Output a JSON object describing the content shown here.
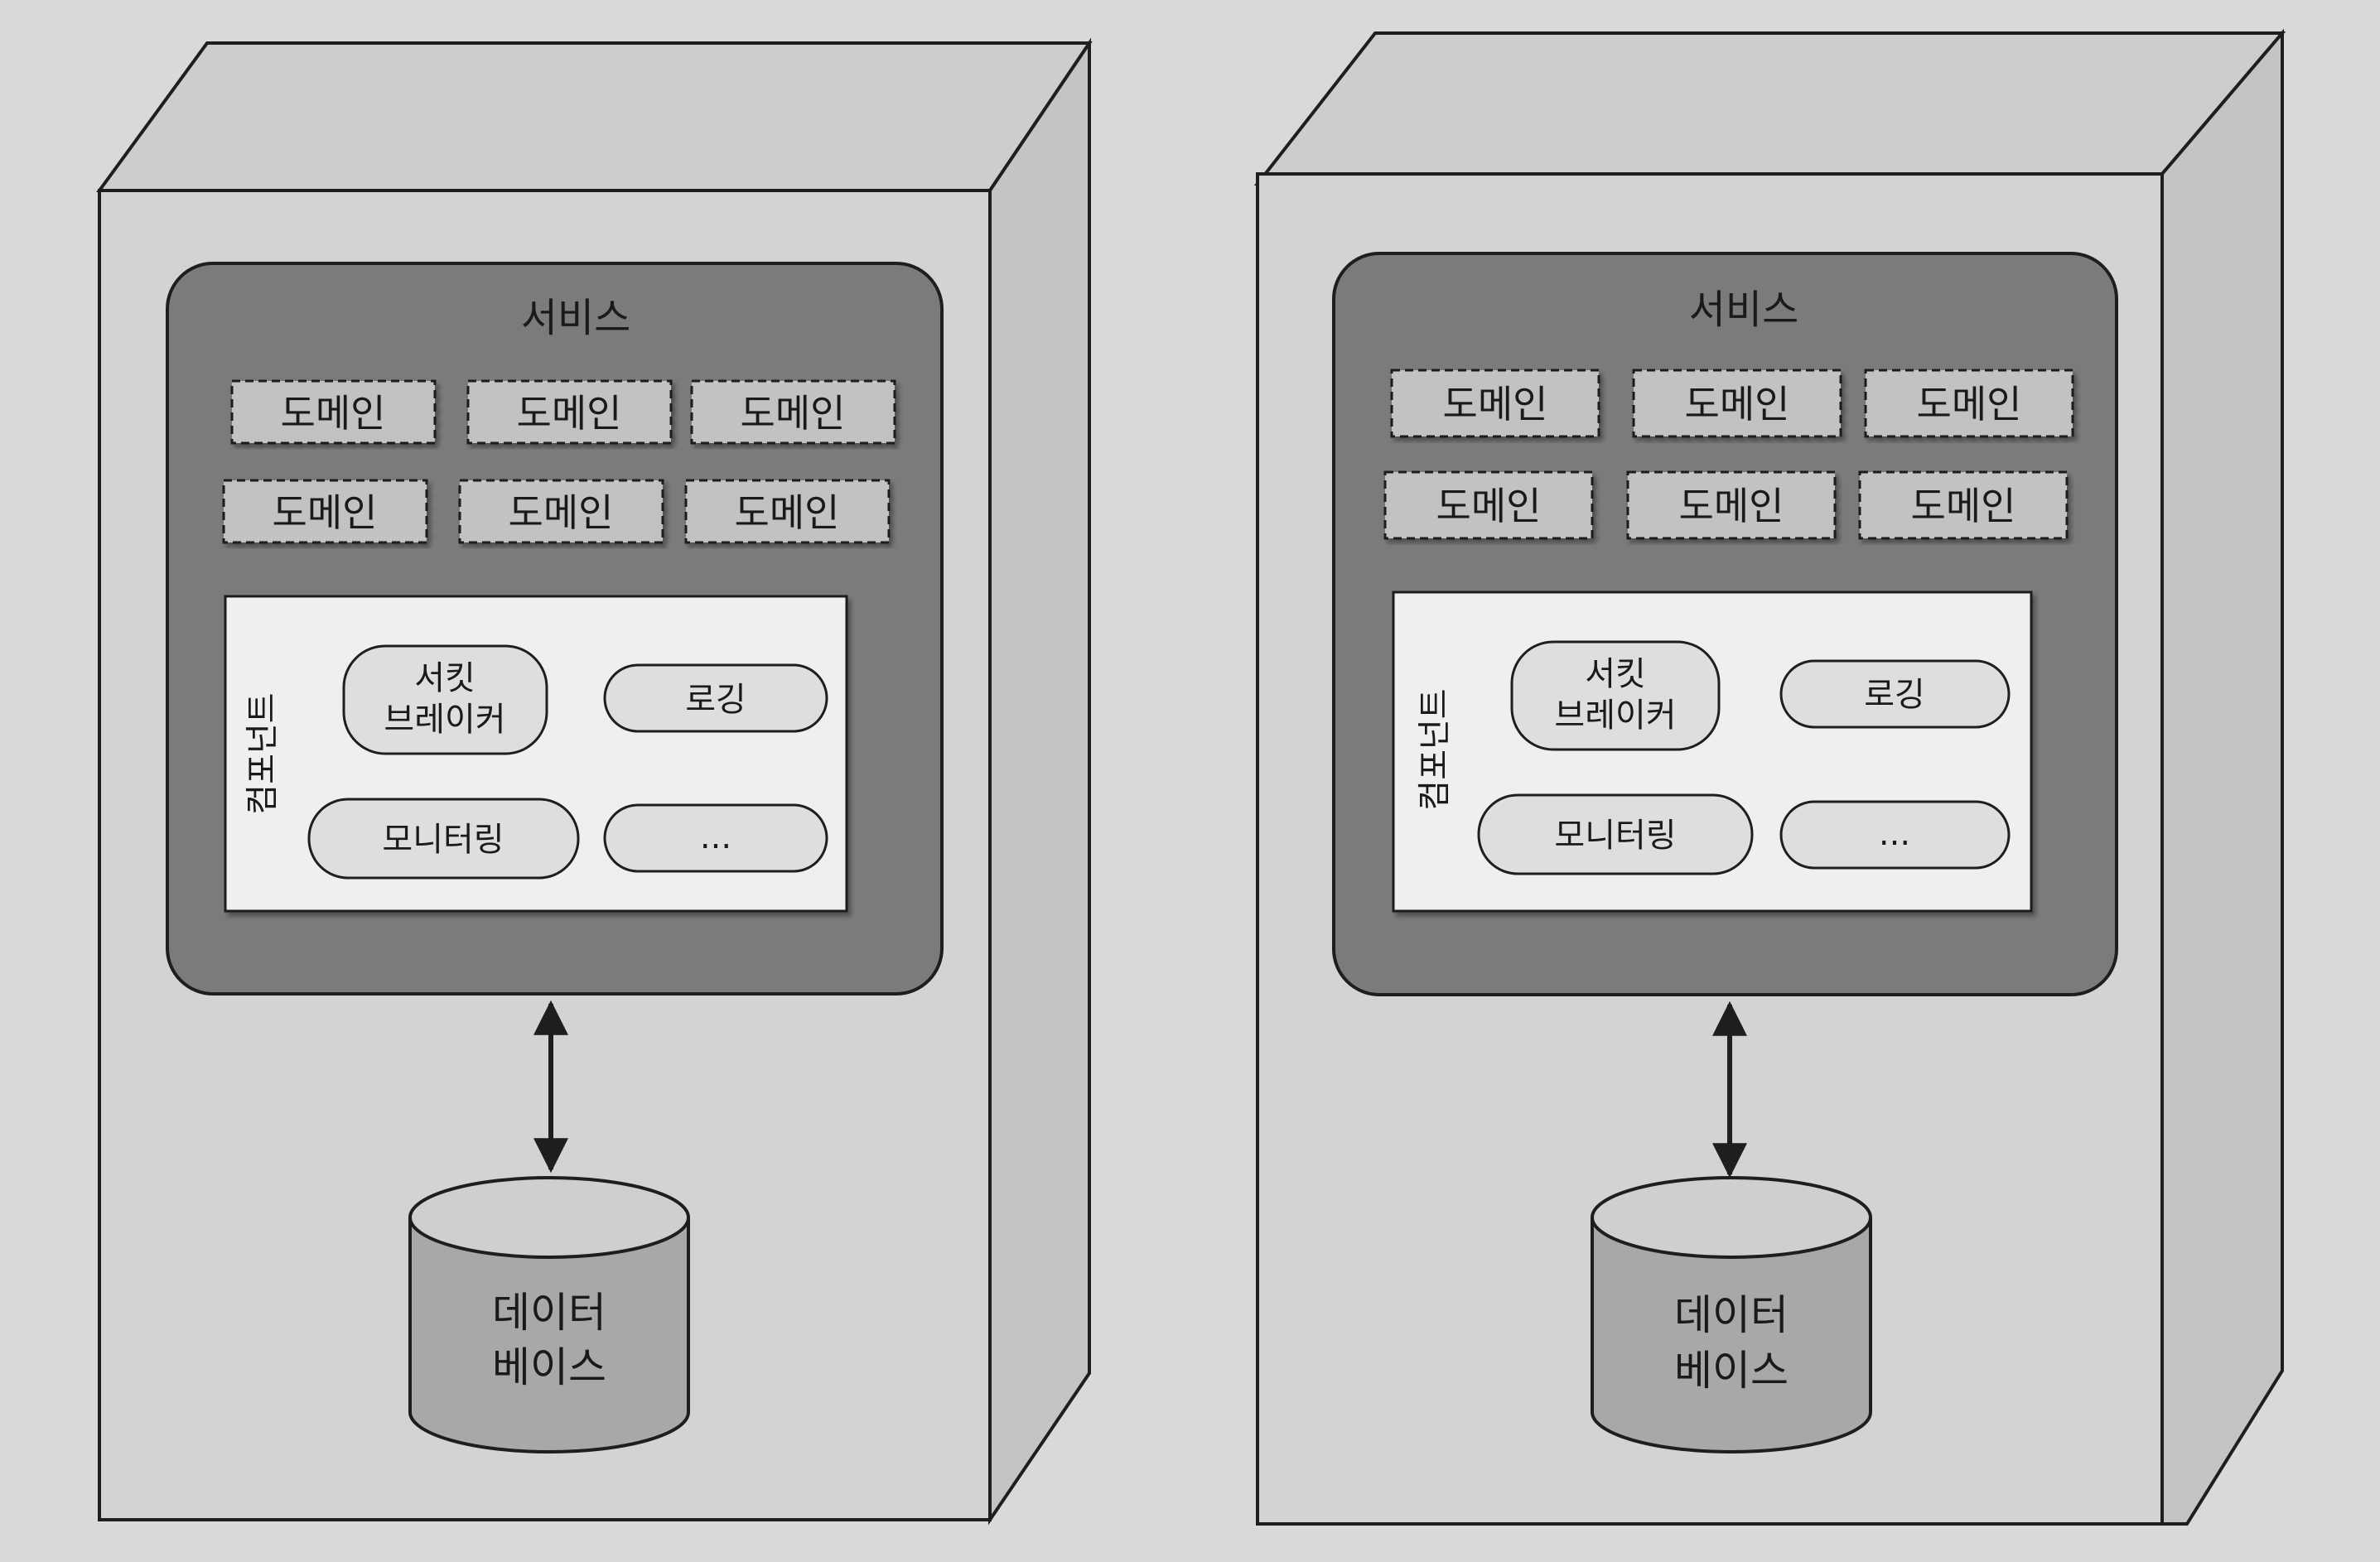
{
  "diagrams": [
    {
      "service_label": "서비스",
      "domains": [
        "도메인",
        "도메인",
        "도메인",
        "도메인",
        "도메인",
        "도메인"
      ],
      "component_label": "컴포넌트",
      "components": [
        {
          "line1": "서킷",
          "line2": "브레이커"
        },
        {
          "line1": "로깅",
          "line2": ""
        },
        {
          "line1": "모니터링",
          "line2": ""
        },
        {
          "line1": "...",
          "line2": ""
        }
      ],
      "database": {
        "line1": "데이터",
        "line2": "베이스"
      }
    },
    {
      "service_label": "서비스",
      "domains": [
        "도메인",
        "도메인",
        "도메인",
        "도메인",
        "도메인",
        "도메인"
      ],
      "component_label": "컴포넌트",
      "components": [
        {
          "line1": "서킷",
          "line2": "브레이커"
        },
        {
          "line1": "로깅",
          "line2": ""
        },
        {
          "line1": "모니터링",
          "line2": ""
        },
        {
          "line1": "...",
          "line2": ""
        }
      ],
      "database": {
        "line1": "데이터",
        "line2": "베이스"
      }
    }
  ],
  "colors": {
    "page": "#d9d9d7",
    "box_front": "#d3d3d1",
    "box_side": "#c4c4c2",
    "box_top": "#cdcdcb",
    "service_panel": "#7b7b7b",
    "domain_box": "#c2c2c2",
    "component_panel": "#efefef",
    "pill": "#dedede",
    "db_body": "#a8a8a8",
    "db_top": "#cfcfcf",
    "stroke": "#1e1e1e"
  }
}
